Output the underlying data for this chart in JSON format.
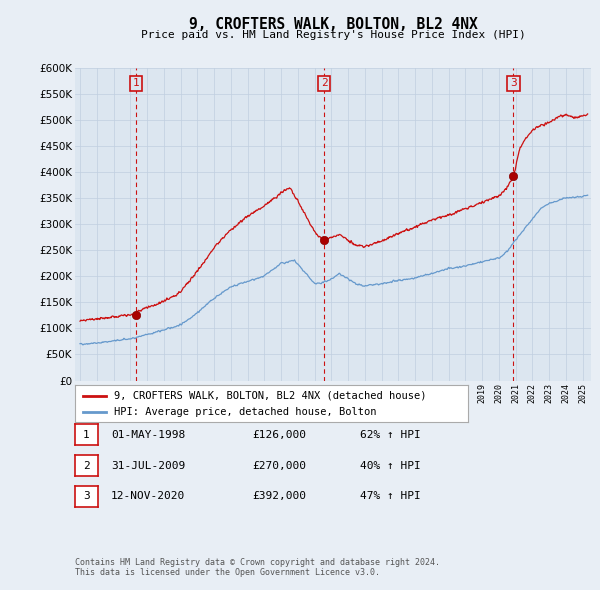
{
  "title": "9, CROFTERS WALK, BOLTON, BL2 4NX",
  "subtitle": "Price paid vs. HM Land Registry's House Price Index (HPI)",
  "ylim": [
    0,
    600000
  ],
  "yticks": [
    0,
    50000,
    100000,
    150000,
    200000,
    250000,
    300000,
    350000,
    400000,
    450000,
    500000,
    550000,
    600000
  ],
  "xlim_start": 1994.7,
  "xlim_end": 2025.5,
  "sale_dates": [
    1998.33,
    2009.58,
    2020.87
  ],
  "sale_prices": [
    126000,
    270000,
    392000
  ],
  "sale_labels": [
    "1",
    "2",
    "3"
  ],
  "background_color": "#e8eef5",
  "plot_bg_color": "#dce6f0",
  "grid_color": "#c0cfe0",
  "hpi_line_color": "#6699cc",
  "price_line_color": "#cc1111",
  "vline_color": "#cc1111",
  "legend_entries": [
    "9, CROFTERS WALK, BOLTON, BL2 4NX (detached house)",
    "HPI: Average price, detached house, Bolton"
  ],
  "table_rows": [
    [
      "1",
      "01-MAY-1998",
      "£126,000",
      "62% ↑ HPI"
    ],
    [
      "2",
      "31-JUL-2009",
      "£270,000",
      "40% ↑ HPI"
    ],
    [
      "3",
      "12-NOV-2020",
      "£392,000",
      "47% ↑ HPI"
    ]
  ],
  "footnote1": "Contains HM Land Registry data © Crown copyright and database right 2024.",
  "footnote2": "This data is licensed under the Open Government Licence v3.0."
}
